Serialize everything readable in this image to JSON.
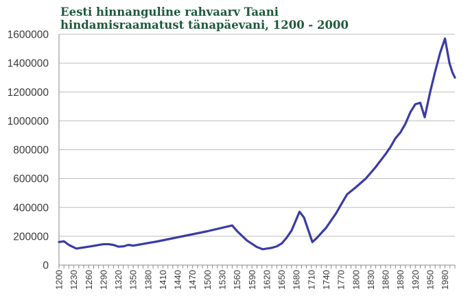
{
  "chart_data": {
    "type": "line",
    "title_lines": [
      "Eesti hinnanguline rahvaarv Taani",
      "hindamisraamatust tänapäevani, 1200 - 2000"
    ],
    "xlabel": "",
    "ylabel": "",
    "xlim": [
      1200,
      2000
    ],
    "ylim": [
      0,
      1600000
    ],
    "y_ticks": [
      0,
      200000,
      400000,
      600000,
      800000,
      1000000,
      1200000,
      1400000,
      1600000
    ],
    "x_ticks": [
      1200,
      1230,
      1260,
      1290,
      1320,
      1350,
      1380,
      1410,
      1440,
      1470,
      1500,
      1530,
      1560,
      1590,
      1620,
      1650,
      1680,
      1710,
      1740,
      1770,
      1800,
      1830,
      1860,
      1890,
      1920,
      1950,
      1980
    ],
    "grid": "horizontal",
    "legend": "none",
    "line_color": "#3a3ba6",
    "series": [
      {
        "x": [
          1200,
          1210,
          1220,
          1235,
          1260,
          1290,
          1300,
          1310,
          1320,
          1330,
          1340,
          1350,
          1400,
          1450,
          1500,
          1550,
          1560,
          1580,
          1600,
          1612,
          1620,
          1630,
          1640,
          1650,
          1660,
          1670,
          1686,
          1695,
          1712,
          1720,
          1740,
          1760,
          1770,
          1782,
          1800,
          1820,
          1840,
          1860,
          1870,
          1880,
          1890,
          1900,
          1910,
          1920,
          1930,
          1939,
          1950,
          1960,
          1970,
          1980,
          1989,
          1995,
          2000
        ],
        "y": [
          160000,
          165000,
          140000,
          115000,
          128000,
          145000,
          145000,
          140000,
          128000,
          130000,
          140000,
          135000,
          165000,
          200000,
          235000,
          275000,
          235000,
          170000,
          125000,
          110000,
          115000,
          120000,
          130000,
          150000,
          190000,
          240000,
          370000,
          330000,
          160000,
          185000,
          260000,
          360000,
          420000,
          490000,
          540000,
          600000,
          680000,
          770000,
          820000,
          880000,
          920000,
          980000,
          1060000,
          1115000,
          1125000,
          1025000,
          1200000,
          1340000,
          1470000,
          1570000,
          1400000,
          1335000,
          1300000
        ]
      }
    ]
  }
}
